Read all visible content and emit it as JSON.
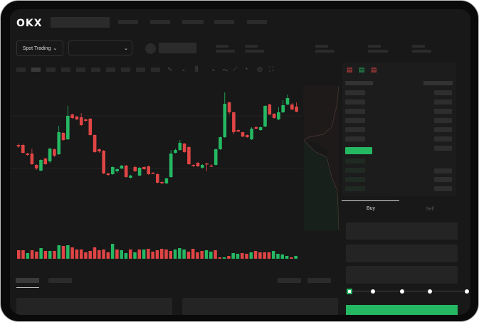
{
  "header": {
    "logo": "OKX",
    "nav_items": 4
  },
  "market": {
    "mode_button": "Spot Trading",
    "pair_dropdown": ""
  },
  "colors": {
    "up": "#25b863",
    "down": "#e04545",
    "background": "#181818",
    "accent": "#25b863"
  },
  "chart_data": {
    "type": "candlestick",
    "candles": [
      [
        97,
        95,
        99,
        93
      ],
      [
        97,
        86,
        99,
        85
      ],
      [
        85,
        83,
        86,
        82
      ],
      [
        85,
        70,
        92,
        69
      ],
      [
        69,
        64,
        70,
        62
      ],
      [
        61,
        76,
        77,
        60
      ],
      [
        78,
        70,
        79,
        69
      ],
      [
        74,
        92,
        93,
        72
      ],
      [
        91,
        82,
        92,
        80
      ],
      [
        84,
        115,
        124,
        83
      ],
      [
        114,
        104,
        115,
        103
      ],
      [
        105,
        138,
        152,
        104
      ],
      [
        140,
        135,
        141,
        134
      ],
      [
        137,
        133,
        138,
        132
      ],
      [
        136,
        125,
        142,
        124
      ],
      [
        133,
        131,
        134,
        130
      ],
      [
        134,
        111,
        135,
        110
      ],
      [
        111,
        87,
        112,
        86
      ],
      [
        91,
        88,
        92,
        86
      ],
      [
        89,
        57,
        90,
        56
      ],
      [
        57,
        55,
        58,
        53
      ],
      [
        56,
        66,
        67,
        55
      ],
      [
        60,
        63,
        64,
        58
      ],
      [
        64,
        68,
        69,
        63
      ],
      [
        68,
        52,
        69,
        51
      ],
      [
        51,
        54,
        55,
        50
      ],
      [
        66,
        60,
        68,
        59
      ],
      [
        54,
        65,
        66,
        53
      ],
      [
        66,
        63,
        67,
        62
      ],
      [
        67,
        56,
        68,
        55
      ],
      [
        58,
        57,
        59,
        56
      ],
      [
        56,
        44,
        57,
        43
      ],
      [
        45,
        43,
        46,
        42
      ],
      [
        43,
        50,
        51,
        42
      ],
      [
        52,
        85,
        90,
        51
      ],
      [
        86,
        90,
        92,
        85
      ],
      [
        90,
        100,
        104,
        89
      ],
      [
        99,
        87,
        100,
        86
      ],
      [
        94,
        70,
        96,
        69
      ],
      [
        69,
        68,
        70,
        66
      ],
      [
        72,
        67,
        73,
        66
      ],
      [
        65,
        69,
        70,
        64
      ],
      [
        71,
        70,
        72,
        60
      ],
      [
        68,
        67,
        70,
        66
      ],
      [
        69,
        91,
        92,
        68
      ],
      [
        91,
        108,
        109,
        90
      ],
      [
        108,
        155,
        171,
        107
      ],
      [
        157,
        143,
        158,
        140
      ],
      [
        143,
        115,
        144,
        112
      ],
      [
        118,
        116,
        119,
        115
      ],
      [
        115,
        109,
        116,
        108
      ],
      [
        111,
        108,
        112,
        107
      ],
      [
        105,
        120,
        122,
        104
      ],
      [
        122,
        120,
        124,
        119
      ],
      [
        118,
        122,
        123,
        117
      ],
      [
        123,
        152,
        153,
        122
      ],
      [
        154,
        140,
        155,
        139
      ],
      [
        141,
        135,
        142,
        134
      ],
      [
        133,
        143,
        150,
        132
      ],
      [
        143,
        153,
        160,
        142
      ],
      [
        154,
        163,
        168,
        153
      ],
      [
        154,
        147,
        156,
        146
      ],
      [
        151,
        144,
        157,
        143
      ]
    ],
    "volume": [
      [
        "d",
        12
      ],
      [
        "d",
        12
      ],
      [
        "u",
        8
      ],
      [
        "d",
        12
      ],
      [
        "d",
        10
      ],
      [
        "u",
        15
      ],
      [
        "d",
        11
      ],
      [
        "u",
        11
      ],
      [
        "d",
        11
      ],
      [
        "u",
        19
      ],
      [
        "d",
        18
      ],
      [
        "u",
        19
      ],
      [
        "d",
        16
      ],
      [
        "d",
        13
      ],
      [
        "d",
        13
      ],
      [
        "d",
        9
      ],
      [
        "d",
        11
      ],
      [
        "d",
        16
      ],
      [
        "d",
        12
      ],
      [
        "d",
        13
      ],
      [
        "d",
        9
      ],
      [
        "u",
        21
      ],
      [
        "d",
        13
      ],
      [
        "u",
        12
      ],
      [
        "u",
        8
      ],
      [
        "d",
        13
      ],
      [
        "u",
        9
      ],
      [
        "d",
        13
      ],
      [
        "u",
        13
      ],
      [
        "d",
        14
      ],
      [
        "d",
        10
      ],
      [
        "d",
        12
      ],
      [
        "d",
        14
      ],
      [
        "d",
        13
      ],
      [
        "d",
        11
      ],
      [
        "u",
        13
      ],
      [
        "u",
        15
      ],
      [
        "u",
        13
      ],
      [
        "d",
        10
      ],
      [
        "d",
        14
      ],
      [
        "d",
        9
      ],
      [
        "d",
        11
      ],
      [
        "u",
        12
      ],
      [
        "u",
        10
      ],
      [
        "d",
        12
      ],
      [
        "d",
        2
      ],
      [
        "u",
        2
      ],
      [
        "d",
        4
      ],
      [
        "u",
        8
      ],
      [
        "u",
        7
      ],
      [
        "d",
        8
      ],
      [
        "d",
        7
      ],
      [
        "u",
        9
      ],
      [
        "d",
        11
      ],
      [
        "d",
        9
      ],
      [
        "d",
        9
      ],
      [
        "d",
        9
      ],
      [
        "u",
        11
      ],
      [
        "u",
        7
      ],
      [
        "u",
        6
      ],
      [
        "u",
        4
      ],
      [
        "d",
        2
      ],
      [
        "u",
        4
      ]
    ]
  },
  "order_form": {
    "tabs": [
      "Buy",
      "Sell"
    ],
    "active_tab": "Buy",
    "slider_percent": 0,
    "slider_stops": [
      0,
      25,
      50,
      75,
      100
    ]
  }
}
